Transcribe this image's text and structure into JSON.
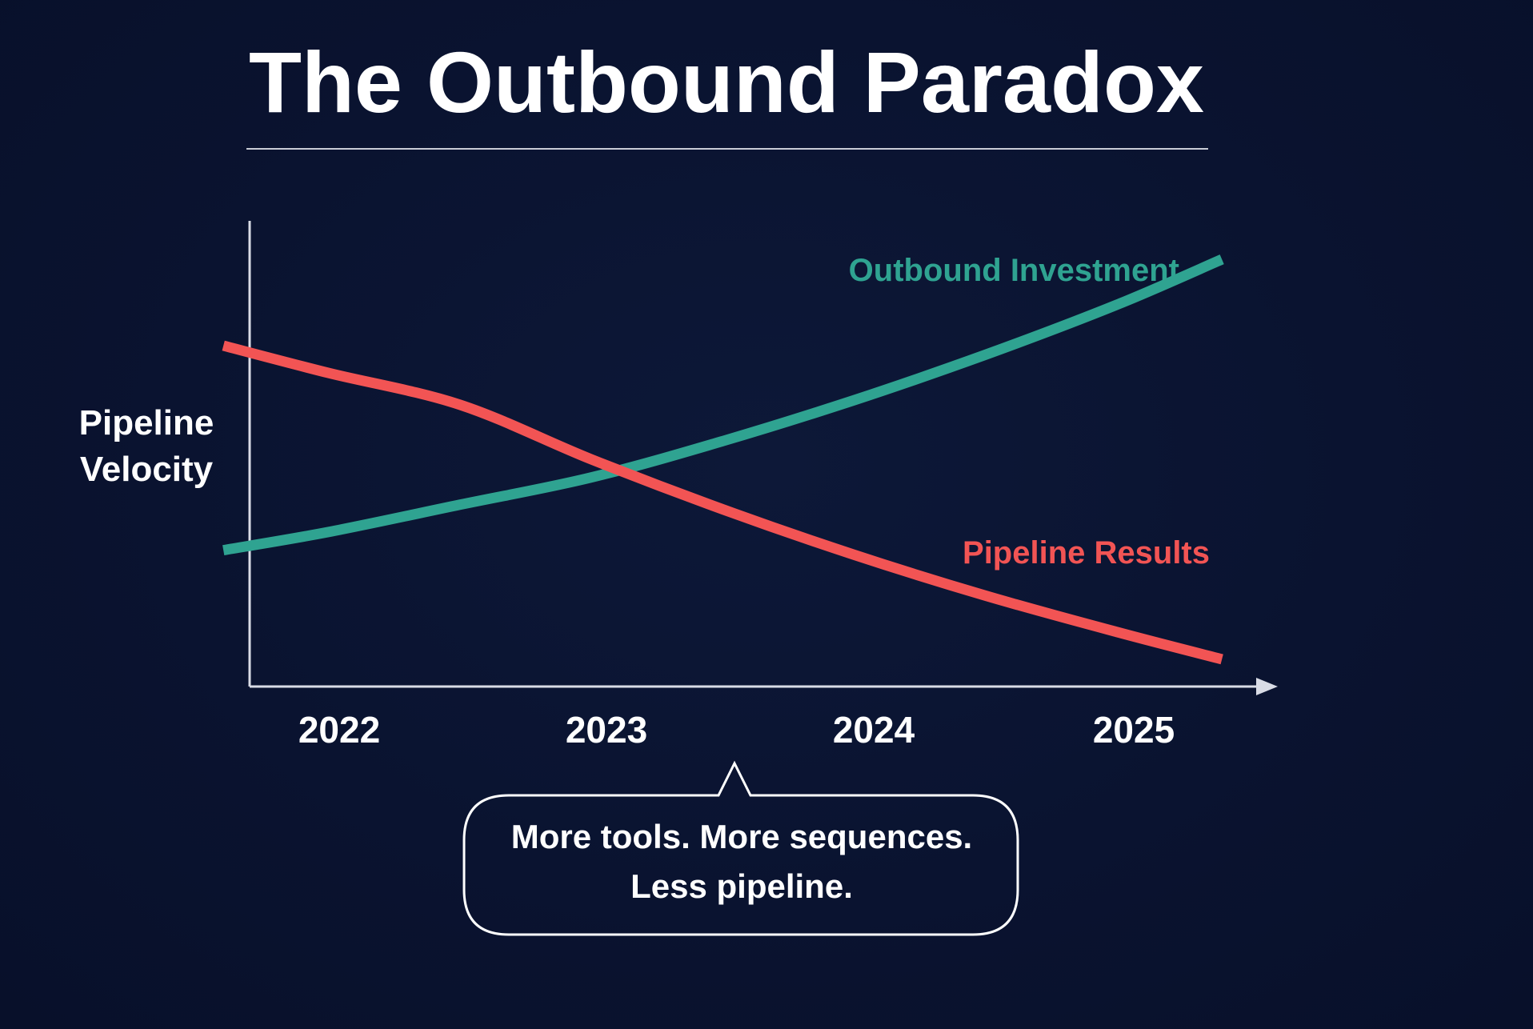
{
  "title": "The Outbound Paradox",
  "callout": {
    "line1": "More tools. More sequences.",
    "line2": "Less pipeline."
  },
  "colors": {
    "background": "#0b1430",
    "outbound": "#2fa391",
    "pipeline": "#f25454",
    "axis": "#d9dce6",
    "text": "#ffffff"
  },
  "chart_data": {
    "type": "line",
    "title": "The Outbound Paradox",
    "xlabel": "",
    "ylabel_line1": "Pipeline",
    "ylabel_line2": "Velocity",
    "categories": [
      "2022",
      "2023",
      "2024",
      "2025"
    ],
    "x_range": [
      2021.7,
      2025.5
    ],
    "ylim": [
      0,
      10
    ],
    "y_ticks_shown": false,
    "grid": false,
    "legend": "inline labels near line ends",
    "series": [
      {
        "name": "Outbound Investment",
        "color": "#2fa391",
        "x": [
          2021.6,
          2022.0,
          2022.5,
          2023.0,
          2023.5,
          2024.0,
          2024.5,
          2025.0,
          2025.4
        ],
        "values": [
          3.0,
          3.4,
          4.0,
          4.6,
          5.4,
          6.3,
          7.3,
          8.4,
          9.4
        ]
      },
      {
        "name": "Pipeline Results",
        "color": "#f25454",
        "x": [
          2021.6,
          2022.0,
          2022.5,
          2023.0,
          2023.5,
          2024.0,
          2024.5,
          2025.0,
          2025.4
        ],
        "values": [
          7.5,
          6.9,
          6.2,
          5.0,
          3.9,
          2.9,
          2.0,
          1.2,
          0.6
        ]
      }
    ]
  }
}
